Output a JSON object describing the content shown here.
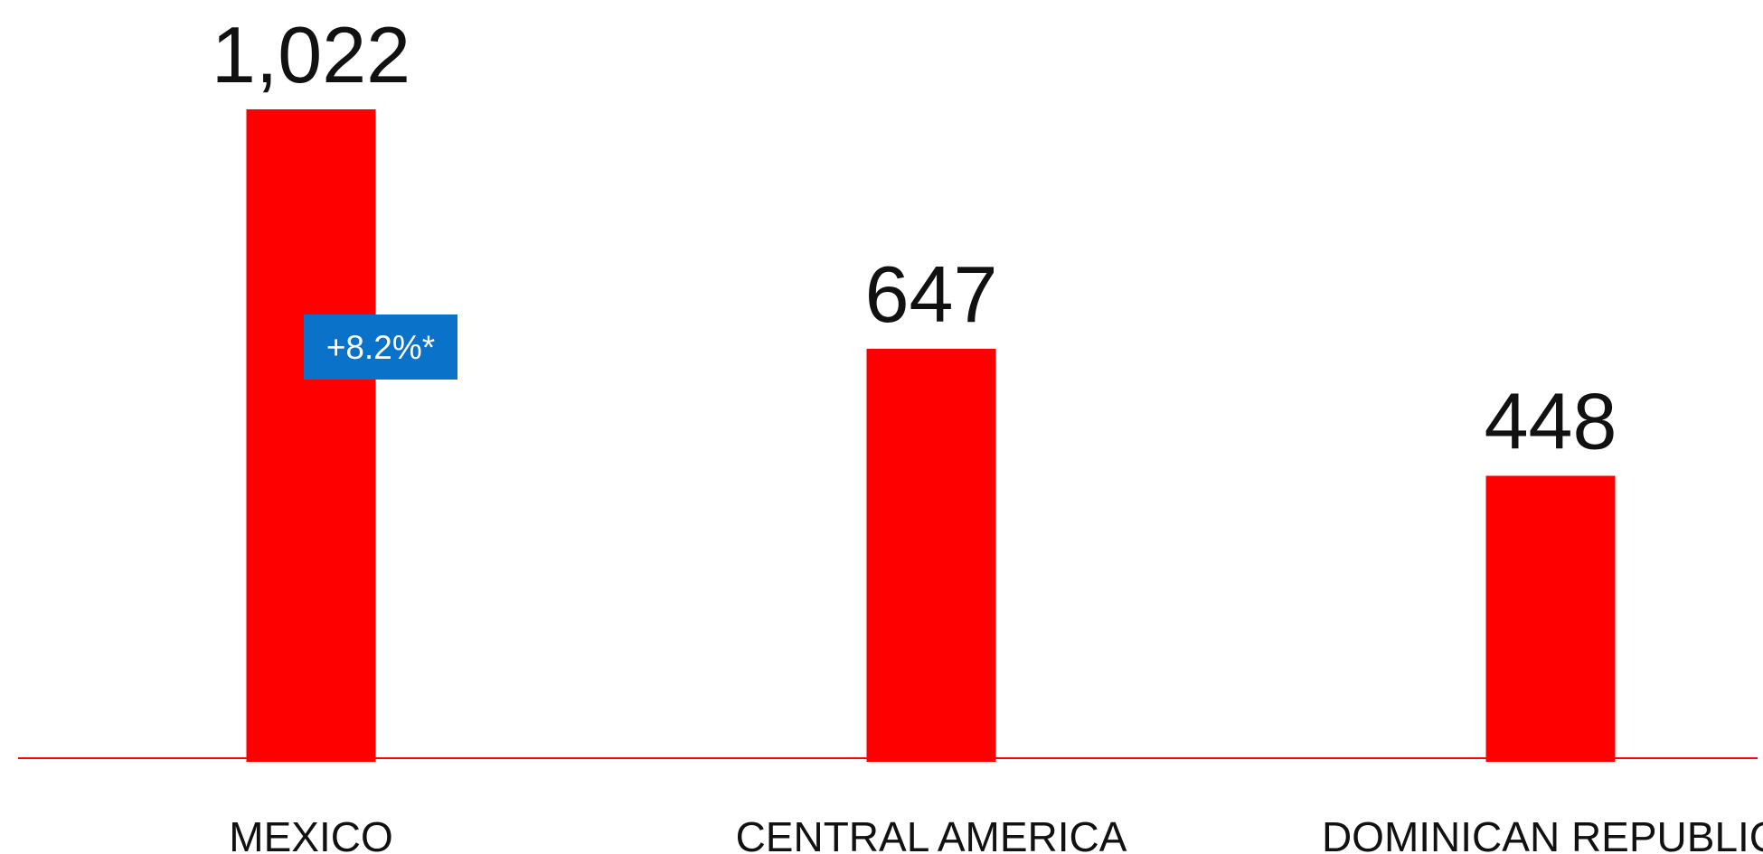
{
  "chart_data": {
    "type": "bar",
    "categories": [
      "MEXICO",
      "CENTRAL AMERICA",
      "DOMINICAN REPUBLIC"
    ],
    "values": [
      1022,
      647,
      448
    ],
    "value_labels": [
      "1,022",
      "647",
      "448"
    ],
    "color": "#ff0000",
    "annotation": "+8.2%*"
  }
}
